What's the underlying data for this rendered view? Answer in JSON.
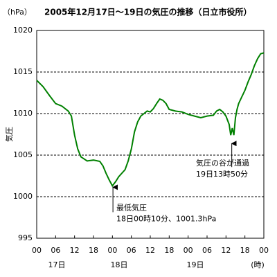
{
  "chart_data": {
    "type": "line",
    "title": "2005年12月17日～19日の気圧の推移（日立市役所）",
    "y_unit": "（hPa）",
    "y_label": "気圧",
    "x_unit": "(時)",
    "day_labels": [
      "17日",
      "18日",
      "19日"
    ],
    "xlim": [
      0,
      72
    ],
    "xticks": [
      {
        "value": 0,
        "label": "00"
      },
      {
        "value": 6,
        "label": "06"
      },
      12,
      18,
      {
        "value": 24,
        "label": "00"
      },
      {
        "value": 30,
        "label": "06"
      },
      {
        "value": 36,
        "label": "12"
      },
      {
        "value": 42,
        "label": "18"
      },
      {
        "value": 48,
        "label": "00"
      },
      {
        "value": 54,
        "label": "06"
      },
      {
        "value": 60,
        "label": "12"
      },
      {
        "value": 66,
        "label": "18"
      },
      {
        "value": 72,
        "label": "00"
      }
    ],
    "ylim": [
      995,
      1020
    ],
    "yticks": [
      995,
      1000,
      1005,
      1010,
      1015,
      1020
    ],
    "grid": true,
    "series": [
      {
        "name": "気圧",
        "color": "#008000",
        "x": [
          0,
          2,
          4,
          6,
          8,
          10,
          11,
          12,
          13,
          14,
          16,
          18,
          20,
          21,
          22,
          23,
          24,
          25,
          26,
          28,
          29,
          30,
          31,
          32,
          33,
          34,
          35,
          36,
          37,
          38,
          39,
          40,
          41,
          42,
          44,
          46,
          48,
          50,
          52,
          54,
          56,
          57,
          58,
          59,
          60,
          61,
          61.5,
          62,
          62.5,
          63,
          63.5,
          64,
          65,
          66,
          67,
          68,
          69,
          70,
          71,
          72
        ],
        "values": [
          1014.0,
          1013.25,
          1012.2,
          1011.2,
          1010.9,
          1010.3,
          1009.7,
          1007.4,
          1005.75,
          1004.8,
          1004.3,
          1004.4,
          1004.25,
          1003.7,
          1002.8,
          1002.0,
          1001.3,
          1001.8,
          1002.4,
          1003.25,
          1004.3,
          1005.75,
          1007.8,
          1009.0,
          1009.7,
          1010.0,
          1010.3,
          1010.2,
          1010.6,
          1011.2,
          1011.75,
          1011.6,
          1011.2,
          1010.5,
          1010.3,
          1010.2,
          1009.9,
          1009.7,
          1009.5,
          1009.7,
          1009.8,
          1010.3,
          1010.5,
          1010.2,
          1009.7,
          1008.7,
          1007.4,
          1008.25,
          1007.4,
          1009.5,
          1010.5,
          1011.2,
          1012.0,
          1012.8,
          1013.8,
          1014.7,
          1015.75,
          1016.6,
          1017.2,
          1017.3
        ]
      }
    ],
    "annotations": [
      {
        "lines": [
          "最低気圧",
          "18日00時10分、1001.3hPa"
        ],
        "x": 24.17,
        "y": 1001.3
      },
      {
        "lines": [
          "気圧の谷が通過",
          "19日13時50分"
        ],
        "x": 61.83,
        "y": 1007.4
      }
    ]
  }
}
